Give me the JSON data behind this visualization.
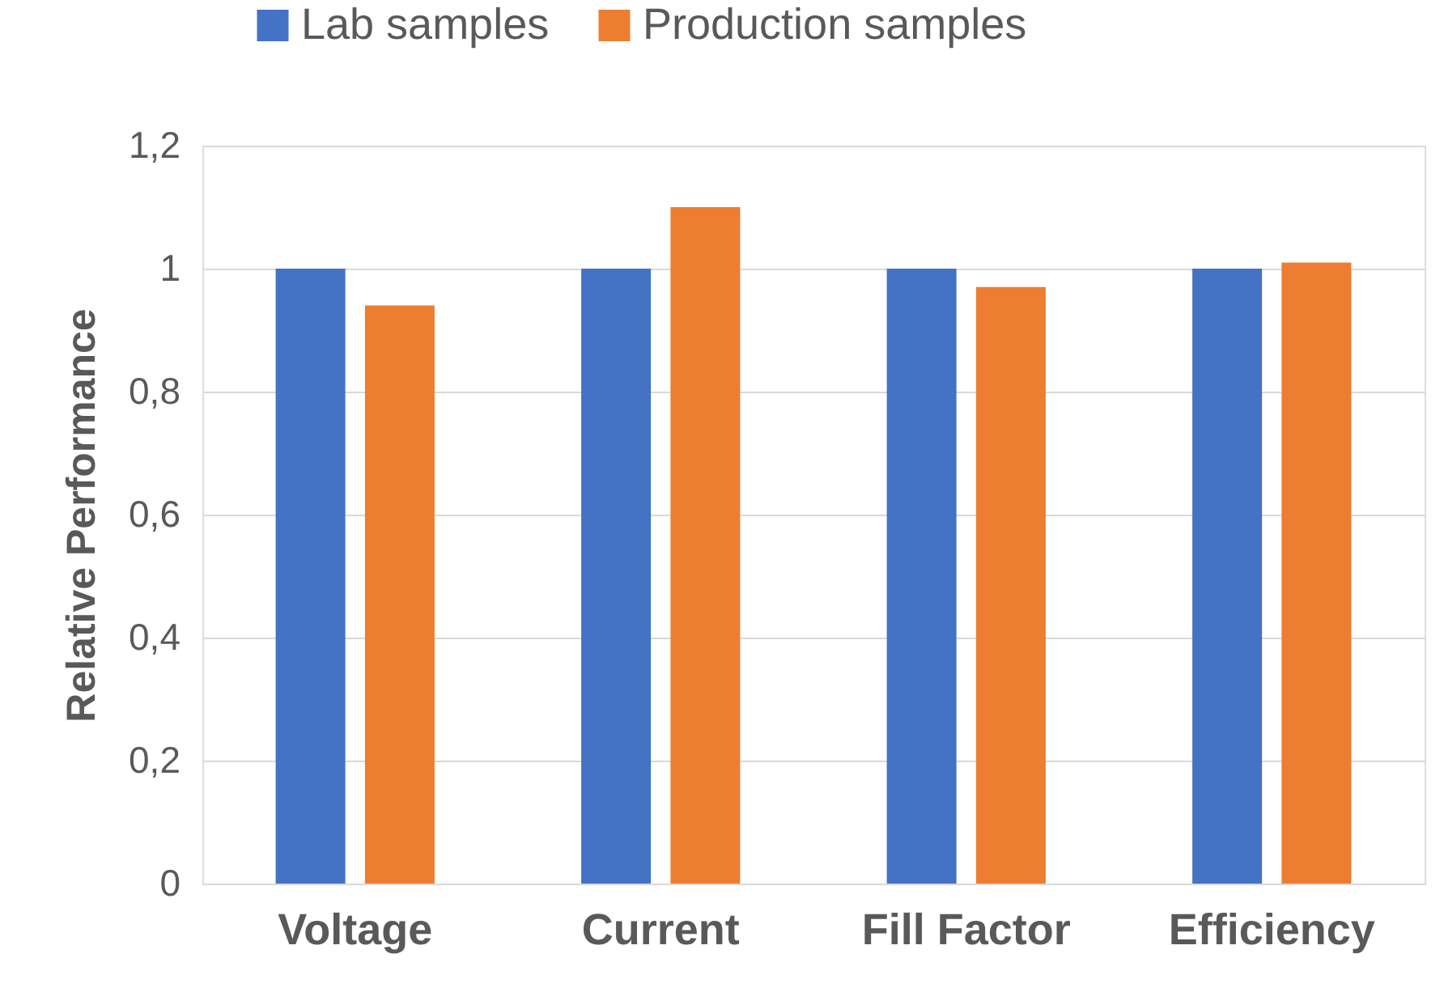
{
  "chart_data": {
    "type": "bar",
    "ylabel": "Relative Performance",
    "categories": [
      "Voltage",
      "Current",
      "Fill Factor",
      "Efficiency"
    ],
    "series": [
      {
        "name": "Lab samples",
        "color": "#4472c4",
        "values": [
          1,
          1,
          1,
          1
        ]
      },
      {
        "name": "Production samples",
        "color": "#ed7d31",
        "values": [
          0.94,
          1.1,
          0.97,
          1.01
        ]
      }
    ],
    "ylim": [
      0,
      1.2
    ],
    "yticks": [
      {
        "value": 0,
        "label": "0"
      },
      {
        "value": 0.2,
        "label": "0,2"
      },
      {
        "value": 0.4,
        "label": "0,4"
      },
      {
        "value": 0.6,
        "label": "0,6"
      },
      {
        "value": 0.8,
        "label": "0,8"
      },
      {
        "value": 1,
        "label": "1"
      },
      {
        "value": 1.2,
        "label": "1,2"
      }
    ],
    "grid": "y",
    "legend": "top"
  }
}
